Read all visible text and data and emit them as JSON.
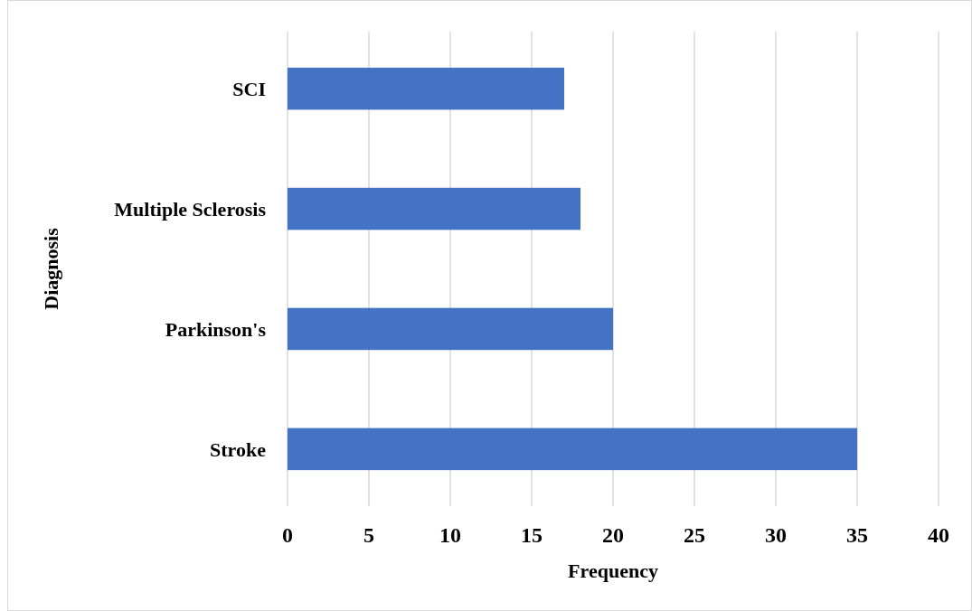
{
  "chart_data": {
    "type": "bar",
    "orientation": "horizontal",
    "xlabel": "Frequency",
    "ylabel": "Diagnosis",
    "categories": [
      "SCI",
      "Multiple Sclerosis",
      "Parkinson's",
      "Stroke"
    ],
    "values": [
      17,
      18,
      20,
      35
    ],
    "color": "#4472c4",
    "xlim": [
      0,
      40
    ],
    "xticks": [
      0,
      5,
      10,
      15,
      20,
      25,
      30,
      35,
      40
    ],
    "grid": "x"
  }
}
